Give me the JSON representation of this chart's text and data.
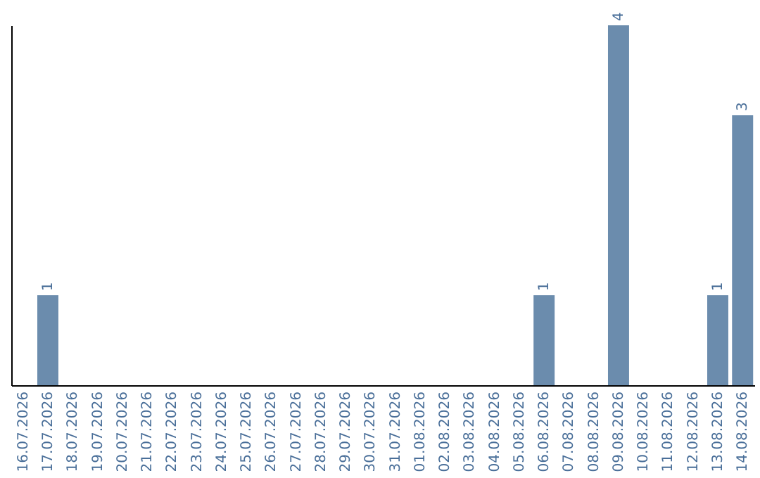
{
  "chart_data": {
    "type": "bar",
    "categories": [
      "16.07.2026",
      "17.07.2026",
      "18.07.2026",
      "19.07.2026",
      "20.07.2026",
      "21.07.2026",
      "22.07.2026",
      "23.07.2026",
      "24.07.2026",
      "25.07.2026",
      "26.07.2026",
      "27.07.2026",
      "28.07.2026",
      "29.07.2026",
      "30.07.2026",
      "31.07.2026",
      "01.08.2026",
      "02.08.2026",
      "03.08.2026",
      "04.08.2026",
      "05.08.2026",
      "06.08.2026",
      "07.08.2026",
      "08.08.2026",
      "09.08.2026",
      "10.08.2026",
      "11.08.2026",
      "12.08.2026",
      "13.08.2026",
      "14.08.2026"
    ],
    "values": [
      0,
      1,
      0,
      0,
      0,
      0,
      0,
      0,
      0,
      0,
      0,
      0,
      0,
      0,
      0,
      0,
      0,
      0,
      0,
      0,
      0,
      1,
      0,
      0,
      4,
      0,
      0,
      0,
      1,
      3
    ],
    "value_labels": [
      null,
      "1",
      null,
      null,
      null,
      null,
      null,
      null,
      null,
      null,
      null,
      null,
      null,
      null,
      null,
      null,
      null,
      null,
      null,
      null,
      null,
      "1",
      null,
      null,
      "4",
      null,
      null,
      null,
      "1",
      "3"
    ],
    "color": "#6b8cad",
    "tick_labels": "x"
  }
}
